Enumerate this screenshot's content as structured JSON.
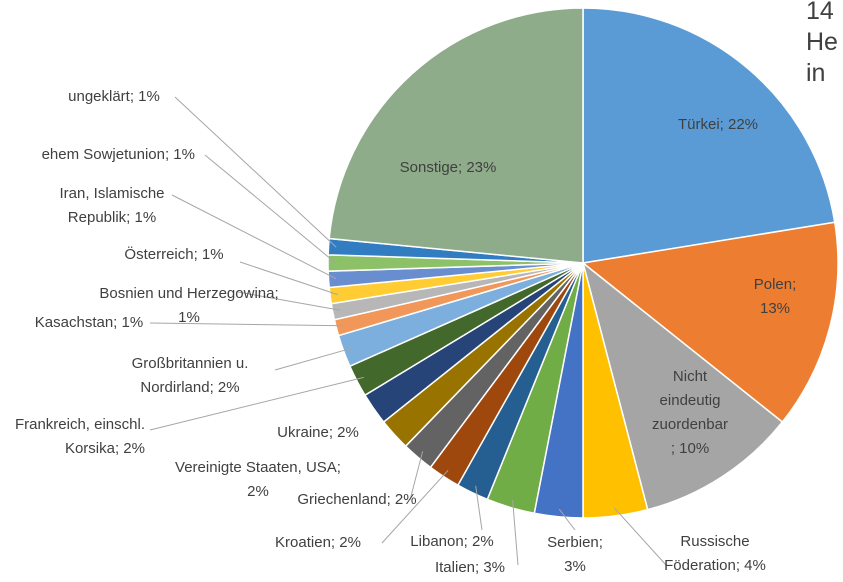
{
  "chart_data": {
    "type": "pie",
    "title": "14\nHe\nin",
    "categories": [
      "Türkei; 22%",
      "Polen; 13%",
      "Nicht\neindeutig\nzuordenbar\n; 10%",
      "Russische\nFöderation; 4%",
      "Serbien;\n3%",
      "Italien; 3%",
      "Libanon; 2%",
      "Kroatien; 2%",
      "Griechenland; 2%",
      "Vereinigte Staaten, USA;\n2%",
      "Ukraine; 2%",
      "Frankreich, einschl.\nKorsika; 2%",
      "Großbritannien u.\nNordirland; 2%",
      "Kasachstan; 1%",
      "Bosnien und Herzegowina;\n1%",
      "Österreich; 1%",
      "Iran, Islamische\nRepublik; 1%",
      "ehem Sowjetunion; 1%",
      "ungeklärt; 1%",
      "Sonstige; 23%"
    ],
    "values": [
      22,
      13,
      10,
      4,
      3,
      3,
      2,
      2,
      2,
      2,
      2,
      2,
      2,
      1,
      1,
      1,
      1,
      1,
      1,
      23
    ],
    "colors": [
      "#5b9bd5",
      "#ed7d31",
      "#a5a5a5",
      "#ffc000",
      "#4472c4",
      "#70ad47",
      "#255e91",
      "#9e480e",
      "#636363",
      "#997300",
      "#264478",
      "#43682b",
      "#7cafdd",
      "#f1975a",
      "#b7b7b7",
      "#ffcd33",
      "#698ed0",
      "#8cc168",
      "#327dc2",
      "#8eab8a"
    ]
  }
}
